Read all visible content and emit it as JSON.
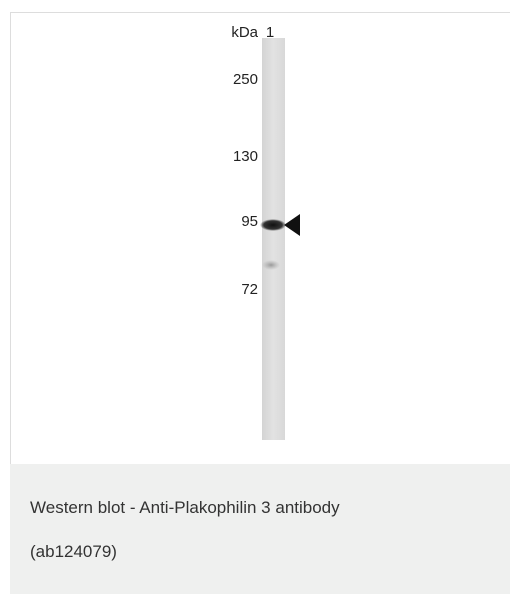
{
  "figure": {
    "header": {
      "unit": "kDa",
      "lane": "1"
    },
    "markers": [
      "250",
      "130",
      "95",
      "72"
    ]
  },
  "caption": {
    "lines": [
      "Western blot - Anti-Plakophilin 3 antibody",
      "(ab124079)"
    ]
  }
}
